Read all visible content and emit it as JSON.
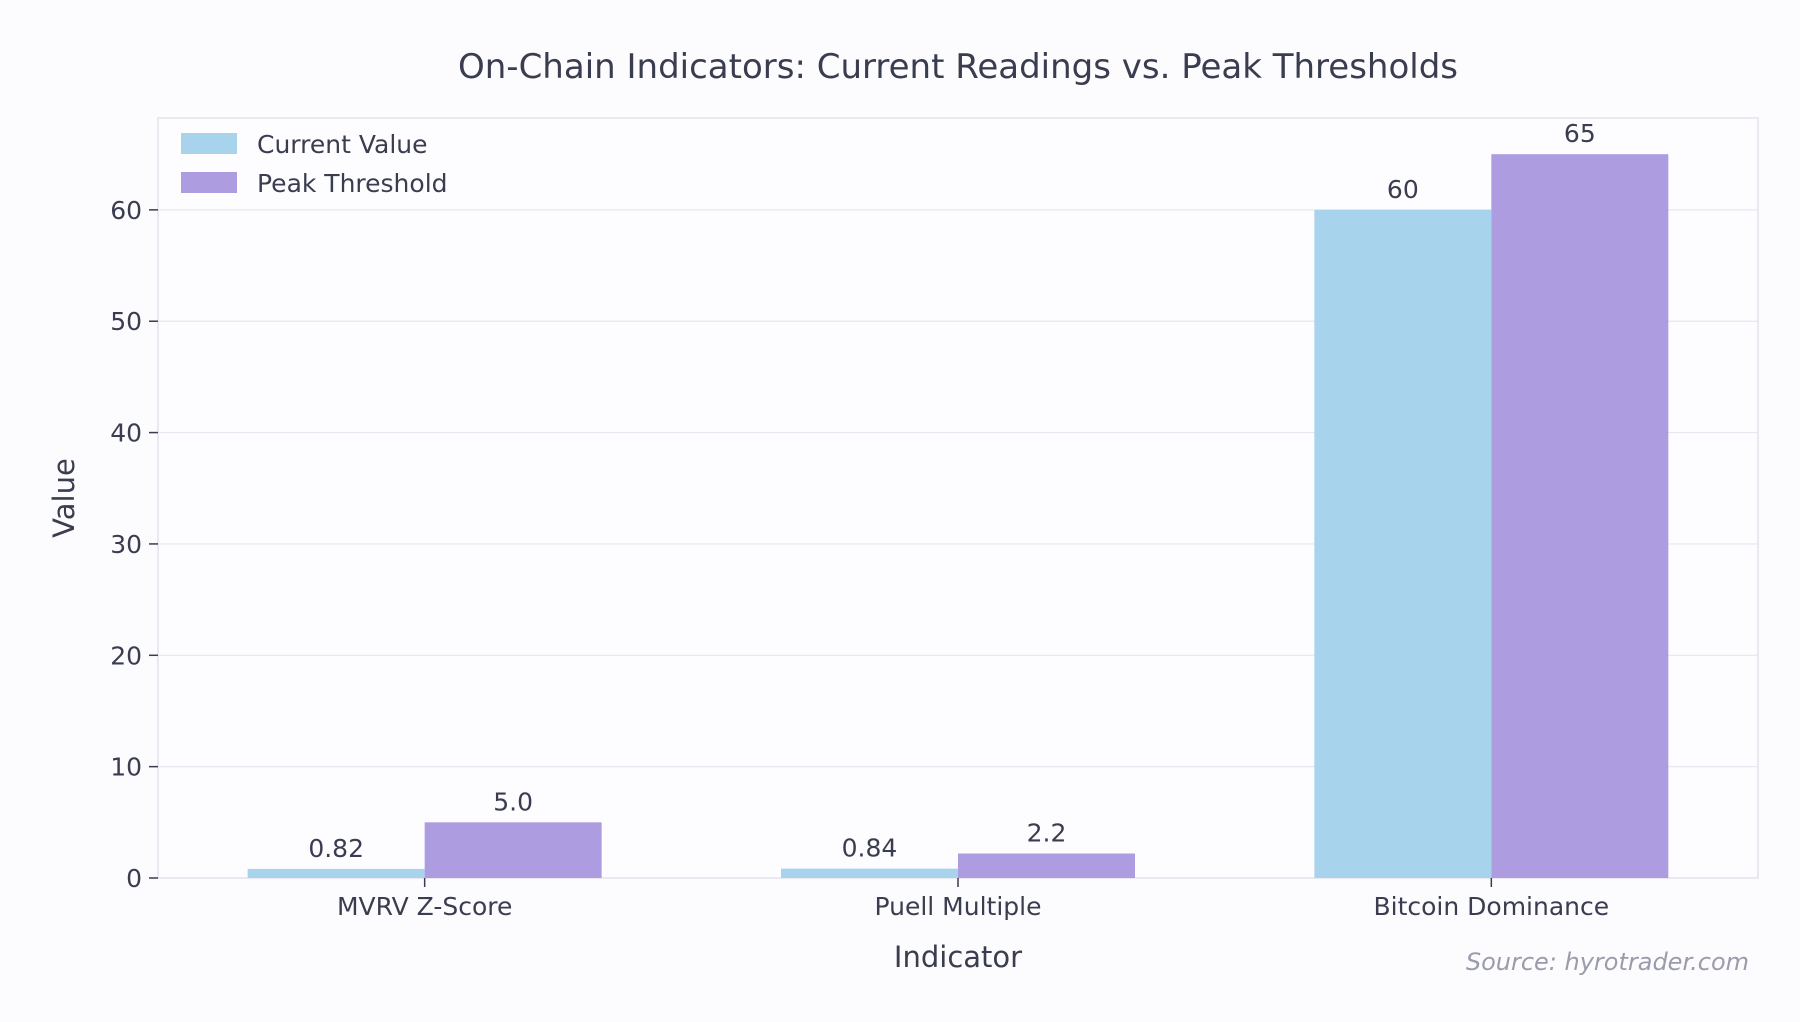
{
  "chart_data": {
    "type": "bar",
    "title": "On-Chain Indicators: Current Readings vs. Peak Thresholds",
    "xlabel": "Indicator",
    "ylabel": "Value",
    "categories": [
      "MVRV Z-Score",
      "Puell Multiple",
      "Bitcoin Dominance"
    ],
    "series": [
      {
        "name": "Current Value",
        "values": [
          0.82,
          0.84,
          60
        ],
        "labels": [
          "0.82",
          "0.84",
          "60"
        ],
        "color": "#a8d3ec"
      },
      {
        "name": "Peak Threshold",
        "values": [
          5.0,
          2.2,
          65
        ],
        "labels": [
          "5.0",
          "2.2",
          "65"
        ],
        "color": "#ad9ce0"
      }
    ],
    "ylim": [
      0,
      68.25
    ],
    "yticks": [
      0,
      10,
      20,
      30,
      40,
      50,
      60
    ],
    "grid": true,
    "legend_position": "top-left"
  },
  "source": "Source: hyrotrader.com",
  "colors": {
    "background": "#fcfbfe",
    "text": "#3a3d4f",
    "grid": "#e8e6f0",
    "frame": "#e4e2ec",
    "source": "#9a9cab"
  }
}
